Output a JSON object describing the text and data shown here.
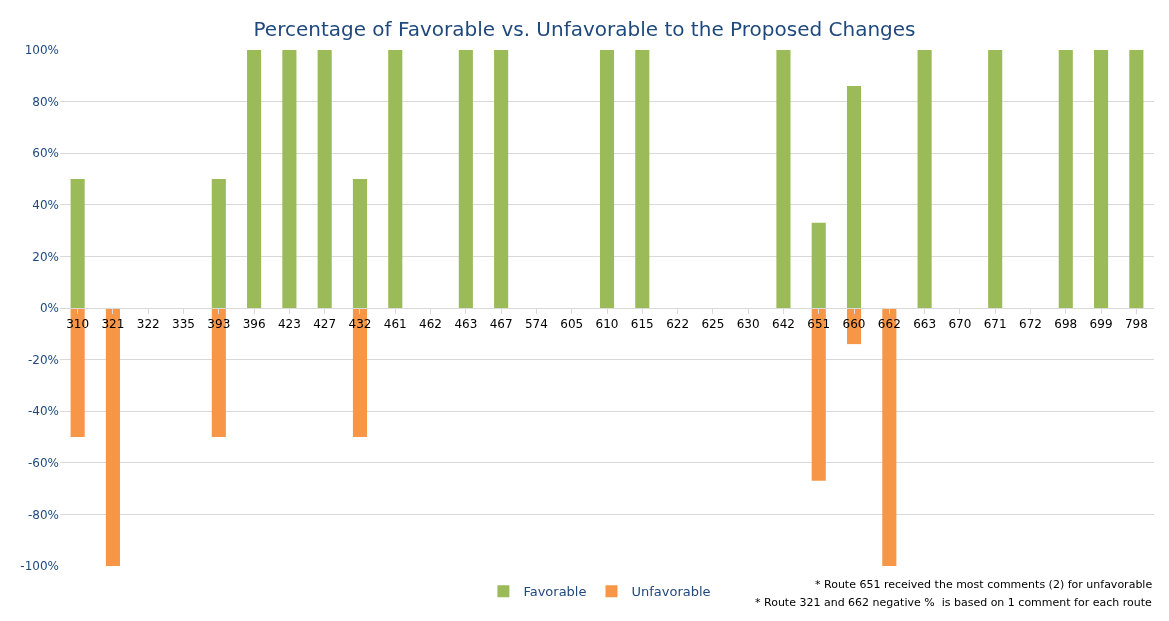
{
  "chart_data": {
    "type": "bar",
    "title": "Percentage of Favorable vs. Unfavorable to the Proposed Changes",
    "categories": [
      "310",
      "321",
      "322",
      "335",
      "393",
      "396",
      "423",
      "427",
      "432",
      "461",
      "462",
      "463",
      "467",
      "574",
      "605",
      "610",
      "615",
      "622",
      "625",
      "630",
      "642",
      "651",
      "660",
      "662",
      "663",
      "670",
      "671",
      "672",
      "698",
      "699",
      "798"
    ],
    "series": [
      {
        "name": "Favorable",
        "color": "#9bbb59",
        "values": [
          50,
          0,
          0,
          0,
          50,
          100,
          100,
          100,
          50,
          100,
          0,
          100,
          100,
          0,
          0,
          100,
          100,
          0,
          0,
          0,
          100,
          33,
          86,
          0,
          100,
          0,
          100,
          0,
          100,
          100,
          100
        ]
      },
      {
        "name": "Unfavorable",
        "color": "#f79646",
        "values": [
          -50,
          -100,
          0,
          0,
          -50,
          0,
          0,
          0,
          -50,
          0,
          0,
          0,
          0,
          0,
          0,
          0,
          0,
          0,
          0,
          0,
          0,
          -67,
          -14,
          -100,
          0,
          0,
          0,
          0,
          0,
          0,
          0
        ]
      }
    ],
    "stacked": true,
    "ylim": [
      -100,
      100
    ],
    "yticks": [
      {
        "value": -100,
        "label": "-100%"
      },
      {
        "value": -80,
        "label": "-80%"
      },
      {
        "value": -60,
        "label": "-60%"
      },
      {
        "value": -40,
        "label": "-40%"
      },
      {
        "value": -20,
        "label": "-20%"
      },
      {
        "value": 0,
        "label": "0%"
      },
      {
        "value": 20,
        "label": "20%"
      },
      {
        "value": 40,
        "label": "40%"
      },
      {
        "value": 60,
        "label": "60%"
      },
      {
        "value": 80,
        "label": "80%"
      },
      {
        "value": 100,
        "label": "100%"
      }
    ],
    "grid": "y",
    "legend": "bottom",
    "annotations": [
      "* Route 651 received the most comments (2) for unfavorable",
      "* Route 321 and 662 negative %  is based on 1 comment for each route"
    ]
  }
}
